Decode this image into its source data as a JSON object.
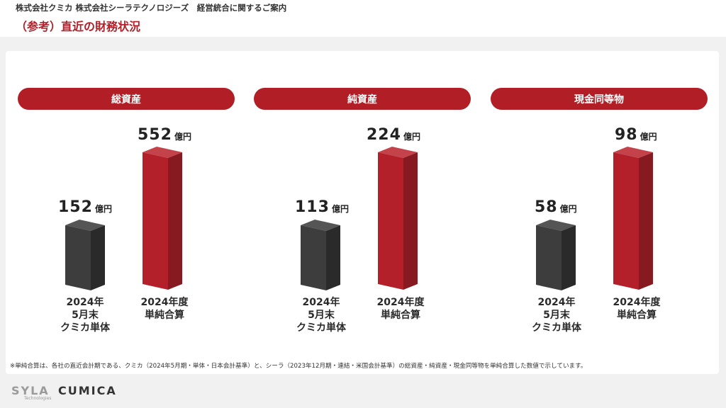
{
  "header": {
    "top_title": "株式会社クミカ 株式会社シーラテクノロジーズ　経営統合に関するご案内",
    "page_title": "（参考）直近の財務状況"
  },
  "panels": [
    {
      "title": "総資産",
      "bars": [
        {
          "value": "152",
          "unit": "億円",
          "label": [
            "2024年",
            "5月末",
            "クミカ単体"
          ],
          "color": "dark"
        },
        {
          "value": "552",
          "unit": "億円",
          "label": [
            "2024年度",
            "単純合算"
          ],
          "color": "red"
        }
      ]
    },
    {
      "title": "純資産",
      "bars": [
        {
          "value": "113",
          "unit": "億円",
          "label": [
            "2024年",
            "5月末",
            "クミカ単体"
          ],
          "color": "dark"
        },
        {
          "value": "224",
          "unit": "億円",
          "label": [
            "2024年度",
            "単純合算"
          ],
          "color": "red"
        }
      ]
    },
    {
      "title": "現金同等物",
      "bars": [
        {
          "value": "58",
          "unit": "億円",
          "label": [
            "2024年",
            "5月末",
            "クミカ単体"
          ],
          "color": "dark"
        },
        {
          "value": "98",
          "unit": "億円",
          "label": [
            "2024年度",
            "単純合算"
          ],
          "color": "red"
        }
      ]
    }
  ],
  "footnote": "※単純合算は、各社の直近会計期である、クミカ（2024年5月期・単体・日本会計基準）と、シーラ（2023年12月期・連結・米国会計基準）の総資産・純資産・現金同等物を単純合算した数値で示しています。",
  "logo": {
    "syla": "SYLA",
    "syla_sub": "Technologies",
    "cumica": "CUMICA"
  },
  "colors": {
    "accent": "#b11e26",
    "dark_bar": "#3a3a3a"
  }
}
